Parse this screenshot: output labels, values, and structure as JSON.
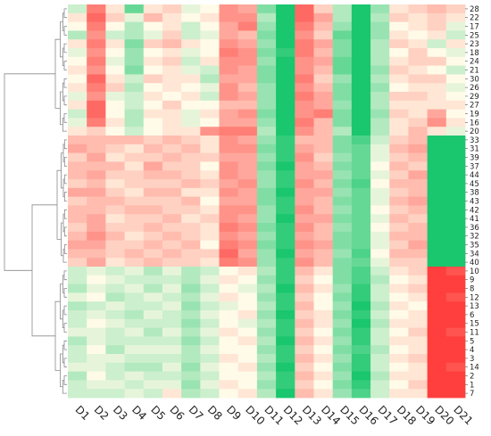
{
  "chart_data": {
    "type": "heatmap",
    "title": "",
    "columns": [
      "D1",
      "D2",
      "D3",
      "D4",
      "D5",
      "D6",
      "D7",
      "D8",
      "D9",
      "D10",
      "D11",
      "D12",
      "D13",
      "D14",
      "D15",
      "D16",
      "D17",
      "D18",
      "D19",
      "D20",
      "D21"
    ],
    "rows": [
      "28",
      "22",
      "17",
      "25",
      "23",
      "18",
      "24",
      "21",
      "30",
      "26",
      "29",
      "27",
      "19",
      "16",
      "20",
      "33",
      "31",
      "39",
      "37",
      "44",
      "45",
      "38",
      "43",
      "42",
      "41",
      "36",
      "32",
      "35",
      "34",
      "40",
      "10",
      "9",
      "8",
      "12",
      "13",
      "6",
      "15",
      "11",
      "5",
      "4",
      "3",
      "14",
      "2",
      "1",
      "7"
    ],
    "color_scale": {
      "low": "#00c060",
      "mid": "#fffbe8",
      "high": "#ff2a2a",
      "range": [
        -1,
        1
      ]
    },
    "values": [
      [
        -0.2,
        0.6,
        0.1,
        -0.6,
        0.1,
        0.2,
        -0.1,
        0.0,
        0.5,
        0.4,
        -0.5,
        -0.9,
        0.7,
        0.2,
        -0.3,
        -0.9,
        -0.4,
        0.1,
        0.2,
        0.3,
        0.2
      ],
      [
        0.1,
        0.7,
        0.2,
        -0.1,
        0.3,
        0.1,
        0.0,
        0.1,
        0.5,
        0.5,
        -0.3,
        -0.9,
        0.7,
        0.4,
        -0.3,
        -0.9,
        -0.3,
        0.2,
        0.1,
        0.2,
        0.1
      ],
      [
        0.0,
        0.6,
        0.0,
        -0.3,
        0.0,
        0.1,
        -0.2,
        0.0,
        0.4,
        0.6,
        -0.4,
        -0.9,
        0.6,
        0.3,
        -0.4,
        -0.9,
        -0.4,
        0.0,
        0.1,
        0.2,
        -0.1
      ],
      [
        -0.3,
        0.5,
        -0.2,
        -0.3,
        -0.1,
        0.2,
        -0.2,
        -0.1,
        0.4,
        0.3,
        -0.5,
        -0.9,
        0.5,
        0.2,
        -0.6,
        -0.9,
        -0.4,
        0.1,
        0.0,
        0.1,
        -0.2
      ],
      [
        0.1,
        0.6,
        0.1,
        -0.5,
        0.2,
        0.3,
        0.1,
        0.0,
        0.5,
        0.4,
        -0.4,
        -0.9,
        0.6,
        0.4,
        -0.5,
        -0.9,
        -0.3,
        0.2,
        0.1,
        -0.2,
        0.1
      ],
      [
        -0.1,
        0.5,
        0.0,
        -0.4,
        0.0,
        0.1,
        -0.1,
        0.0,
        0.6,
        0.5,
        -0.5,
        -0.8,
        0.6,
        0.3,
        -0.5,
        -0.9,
        -0.3,
        0.0,
        0.2,
        0.0,
        -0.1
      ],
      [
        0.0,
        0.6,
        -0.1,
        -0.4,
        0.1,
        0.2,
        -0.2,
        0.1,
        0.5,
        0.5,
        -0.4,
        -0.9,
        0.5,
        0.4,
        -0.6,
        -0.9,
        -0.3,
        0.1,
        0.2,
        0.2,
        0.0
      ],
      [
        0.1,
        0.5,
        0.0,
        -0.5,
        0.0,
        0.1,
        -0.1,
        -0.2,
        0.5,
        0.4,
        -0.5,
        -0.9,
        0.5,
        0.3,
        -0.6,
        -0.9,
        -0.4,
        0.2,
        0.1,
        0.0,
        -0.2
      ],
      [
        0.0,
        0.7,
        0.1,
        -0.2,
        0.2,
        0.1,
        0.1,
        -0.3,
        0.4,
        0.4,
        -0.5,
        -0.9,
        0.6,
        0.2,
        -0.4,
        -0.9,
        -0.3,
        0.1,
        0.2,
        0.2,
        0.0
      ],
      [
        0.1,
        0.6,
        0.2,
        -0.3,
        0.0,
        0.1,
        0.0,
        -0.1,
        0.5,
        0.3,
        -0.4,
        -0.9,
        0.5,
        0.3,
        -0.5,
        -0.9,
        -0.4,
        0.0,
        0.1,
        0.1,
        -0.1
      ],
      [
        -0.1,
        0.5,
        -0.1,
        -0.2,
        0.1,
        0.0,
        0.1,
        -0.2,
        0.5,
        0.4,
        -0.4,
        -0.9,
        0.6,
        0.4,
        -0.5,
        -0.9,
        -0.3,
        0.2,
        0.2,
        0.1,
        0.0
      ],
      [
        0.1,
        0.7,
        0.0,
        -0.2,
        0.0,
        0.2,
        0.0,
        0.0,
        0.3,
        0.3,
        -0.4,
        -0.9,
        0.5,
        0.4,
        -0.4,
        -0.9,
        -0.3,
        0.1,
        0.1,
        0.1,
        0.1
      ],
      [
        -0.2,
        0.7,
        0.0,
        -0.3,
        0.1,
        0.1,
        -0.1,
        0.1,
        0.4,
        0.5,
        -0.5,
        -0.9,
        0.5,
        0.6,
        -0.5,
        -0.9,
        -0.4,
        0.2,
        0.1,
        0.4,
        0.0
      ],
      [
        -0.1,
        0.6,
        0.1,
        -0.3,
        0.0,
        0.1,
        -0.1,
        0.0,
        0.4,
        0.4,
        -0.4,
        -0.9,
        0.6,
        0.3,
        -0.5,
        -0.9,
        -0.3,
        0.1,
        0.2,
        0.5,
        0.1
      ],
      [
        0.1,
        0.2,
        0.0,
        -0.2,
        0.0,
        0.1,
        0.1,
        0.5,
        0.6,
        0.6,
        -0.3,
        -0.9,
        0.5,
        0.3,
        -0.3,
        -0.9,
        -0.3,
        0.1,
        0.3,
        0.1,
        -0.1
      ],
      [
        0.3,
        0.3,
        0.3,
        0.3,
        0.2,
        0.3,
        0.2,
        0.1,
        0.5,
        0.4,
        -0.4,
        -0.8,
        0.3,
        0.3,
        -0.5,
        -0.7,
        -0.2,
        0.2,
        0.3,
        -0.9,
        -0.9
      ],
      [
        0.4,
        0.3,
        0.2,
        0.1,
        0.3,
        0.2,
        0.3,
        0.1,
        0.5,
        0.5,
        -0.5,
        -0.8,
        0.4,
        0.3,
        -0.5,
        -0.6,
        -0.1,
        0.3,
        0.4,
        -0.9,
        -0.9
      ],
      [
        0.2,
        0.4,
        0.1,
        0.2,
        0.2,
        0.3,
        0.2,
        0.2,
        0.4,
        0.4,
        -0.4,
        -0.8,
        0.5,
        0.2,
        -0.4,
        -0.6,
        -0.1,
        0.2,
        0.3,
        -0.9,
        -0.9
      ],
      [
        0.3,
        0.3,
        0.3,
        0.1,
        0.4,
        0.2,
        0.2,
        0.0,
        0.5,
        0.4,
        -0.5,
        -0.9,
        0.4,
        0.3,
        -0.5,
        -0.6,
        0.0,
        0.3,
        0.2,
        -0.9,
        -0.9
      ],
      [
        0.3,
        0.4,
        0.2,
        0.2,
        0.3,
        0.3,
        0.2,
        0.1,
        0.5,
        0.4,
        -0.4,
        -0.8,
        0.4,
        0.4,
        -0.4,
        -0.6,
        -0.1,
        0.2,
        0.4,
        -0.9,
        -0.9
      ],
      [
        0.2,
        0.3,
        0.1,
        0.2,
        0.2,
        0.2,
        0.3,
        0.2,
        0.4,
        0.5,
        -0.4,
        -0.8,
        0.5,
        0.3,
        -0.5,
        -0.7,
        0.0,
        0.3,
        0.3,
        -0.9,
        -0.9
      ],
      [
        0.4,
        0.4,
        0.2,
        0.1,
        0.3,
        0.3,
        0.1,
        0.1,
        0.5,
        0.4,
        -0.5,
        -0.9,
        0.4,
        0.4,
        -0.4,
        -0.6,
        -0.1,
        0.2,
        0.3,
        -0.9,
        -0.9
      ],
      [
        0.2,
        0.3,
        0.3,
        0.2,
        0.2,
        0.2,
        0.3,
        0.0,
        0.4,
        0.4,
        -0.5,
        -0.8,
        0.4,
        0.3,
        -0.5,
        -0.6,
        -0.1,
        0.3,
        0.4,
        -0.9,
        -0.9
      ],
      [
        0.3,
        0.3,
        0.2,
        0.3,
        0.3,
        0.2,
        0.2,
        0.1,
        0.5,
        0.5,
        -0.4,
        -0.8,
        0.5,
        0.3,
        -0.4,
        -0.6,
        0.0,
        0.2,
        0.3,
        -0.9,
        -0.9
      ],
      [
        0.3,
        0.4,
        0.1,
        0.2,
        0.2,
        0.3,
        0.1,
        0.2,
        0.5,
        0.4,
        -0.4,
        -0.9,
        0.4,
        0.4,
        -0.5,
        -0.6,
        -0.1,
        0.3,
        0.2,
        -0.9,
        -0.9
      ],
      [
        0.2,
        0.4,
        0.2,
        0.2,
        0.3,
        0.2,
        0.2,
        0.1,
        0.6,
        0.5,
        -0.5,
        -0.8,
        0.5,
        0.3,
        -0.4,
        -0.6,
        0.0,
        0.2,
        0.3,
        -0.9,
        -0.9
      ],
      [
        0.3,
        0.5,
        0.3,
        0.1,
        0.2,
        0.3,
        0.2,
        0.1,
        0.5,
        0.4,
        -0.4,
        -0.8,
        0.4,
        0.3,
        -0.5,
        -0.6,
        -0.1,
        0.3,
        0.3,
        -0.9,
        -0.9
      ],
      [
        0.4,
        0.4,
        0.2,
        0.2,
        0.3,
        0.2,
        0.3,
        0.0,
        0.6,
        0.5,
        -0.5,
        -0.8,
        0.5,
        0.4,
        -0.5,
        -0.6,
        -0.1,
        0.2,
        0.4,
        -0.9,
        -0.9
      ],
      [
        0.3,
        0.3,
        0.2,
        0.3,
        0.2,
        0.3,
        0.2,
        0.2,
        0.7,
        0.4,
        -0.4,
        -0.9,
        0.4,
        0.3,
        -0.4,
        -0.7,
        0.0,
        0.3,
        0.3,
        -0.9,
        -0.9
      ],
      [
        0.2,
        0.4,
        0.1,
        0.2,
        0.3,
        0.2,
        0.2,
        0.1,
        0.6,
        0.5,
        -0.4,
        -0.8,
        0.5,
        0.3,
        -0.5,
        -0.6,
        -0.1,
        0.2,
        0.2,
        -0.9,
        -0.9
      ],
      [
        -0.2,
        -0.1,
        -0.2,
        -0.1,
        -0.3,
        -0.1,
        -0.3,
        -0.2,
        0.0,
        0.1,
        -0.3,
        -0.8,
        0.3,
        0.1,
        -0.5,
        -0.7,
        -0.2,
        0.1,
        0.2,
        0.9,
        0.8
      ],
      [
        -0.2,
        0.0,
        -0.1,
        -0.2,
        -0.2,
        -0.2,
        -0.3,
        -0.1,
        0.1,
        0.0,
        -0.4,
        -0.8,
        0.2,
        0.0,
        -0.5,
        -0.7,
        -0.3,
        0.0,
        0.1,
        0.9,
        0.9
      ],
      [
        -0.3,
        -0.1,
        -0.2,
        -0.1,
        -0.3,
        -0.1,
        -0.4,
        -0.2,
        0.0,
        -0.1,
        -0.3,
        -0.9,
        0.3,
        0.1,
        -0.4,
        -0.8,
        -0.2,
        0.1,
        0.2,
        0.9,
        0.9
      ],
      [
        -0.1,
        0.0,
        -0.3,
        -0.2,
        -0.1,
        -0.2,
        -0.3,
        -0.1,
        0.1,
        0.0,
        -0.4,
        -0.8,
        0.2,
        0.0,
        -0.5,
        -0.8,
        -0.2,
        0.0,
        0.1,
        0.9,
        0.8
      ],
      [
        -0.3,
        -0.2,
        -0.1,
        -0.2,
        -0.2,
        -0.1,
        -0.4,
        -0.2,
        -0.1,
        0.0,
        -0.3,
        -0.8,
        0.3,
        0.0,
        -0.4,
        -0.9,
        -0.3,
        0.1,
        0.0,
        0.9,
        0.9
      ],
      [
        -0.2,
        -0.1,
        -0.2,
        -0.3,
        -0.1,
        -0.2,
        -0.3,
        -0.1,
        0.0,
        0.1,
        -0.4,
        -0.9,
        0.2,
        0.1,
        -0.5,
        -0.8,
        -0.2,
        0.0,
        0.1,
        0.9,
        0.9
      ],
      [
        -0.2,
        0.0,
        -0.1,
        -0.2,
        -0.2,
        -0.2,
        -0.4,
        -0.2,
        0.0,
        -0.1,
        -0.3,
        -0.8,
        0.3,
        0.1,
        -0.4,
        -0.9,
        -0.3,
        0.1,
        0.1,
        0.9,
        0.9
      ],
      [
        -0.1,
        -0.1,
        -0.2,
        -0.1,
        -0.3,
        -0.1,
        -0.3,
        -0.1,
        0.1,
        0.0,
        -0.4,
        -0.8,
        0.2,
        0.0,
        -0.5,
        -0.8,
        -0.2,
        0.0,
        0.2,
        0.9,
        0.8
      ],
      [
        -0.3,
        -0.1,
        -0.2,
        -0.2,
        -0.2,
        -0.2,
        -0.4,
        -0.2,
        0.0,
        0.1,
        -0.3,
        -0.9,
        0.3,
        0.1,
        -0.4,
        -0.8,
        -0.2,
        0.1,
        0.1,
        0.9,
        0.9
      ],
      [
        -0.2,
        0.0,
        -0.3,
        -0.1,
        -0.1,
        -0.1,
        -0.3,
        -0.1,
        0.0,
        0.0,
        -0.4,
        -0.8,
        0.2,
        0.0,
        -0.5,
        -0.7,
        -0.3,
        0.0,
        0.1,
        0.9,
        0.9
      ],
      [
        -0.2,
        -0.1,
        -0.1,
        -0.2,
        -0.2,
        -0.2,
        -0.3,
        -0.2,
        0.1,
        0.0,
        -0.3,
        -0.8,
        0.3,
        0.1,
        -0.4,
        -0.8,
        -0.2,
        0.1,
        0.2,
        0.9,
        0.9
      ],
      [
        -0.1,
        -0.1,
        -0.2,
        -0.3,
        -0.3,
        -0.1,
        -0.4,
        -0.1,
        0.0,
        0.1,
        -0.4,
        -0.9,
        0.2,
        0.0,
        -0.5,
        -0.8,
        -0.2,
        0.0,
        0.1,
        0.9,
        0.8
      ],
      [
        -0.3,
        0.0,
        -0.2,
        -0.1,
        -0.2,
        -0.2,
        -0.3,
        -0.2,
        0.0,
        0.0,
        -0.3,
        -0.8,
        0.3,
        0.1,
        -0.4,
        -0.9,
        -0.3,
        0.1,
        0.1,
        0.9,
        0.9
      ],
      [
        -0.2,
        -0.1,
        -0.1,
        -0.2,
        -0.1,
        -0.1,
        -0.4,
        -0.1,
        0.1,
        0.0,
        -0.4,
        -0.8,
        0.2,
        0.0,
        -0.5,
        -0.8,
        -0.2,
        0.0,
        0.2,
        0.9,
        0.9
      ],
      [
        -0.2,
        -0.2,
        -0.2,
        -0.1,
        -0.2,
        0.1,
        -0.3,
        -0.2,
        0.0,
        0.1,
        -0.3,
        -0.9,
        0.3,
        0.1,
        -0.4,
        -0.7,
        -0.2,
        0.1,
        0.1,
        0.9,
        0.9
      ]
    ]
  }
}
